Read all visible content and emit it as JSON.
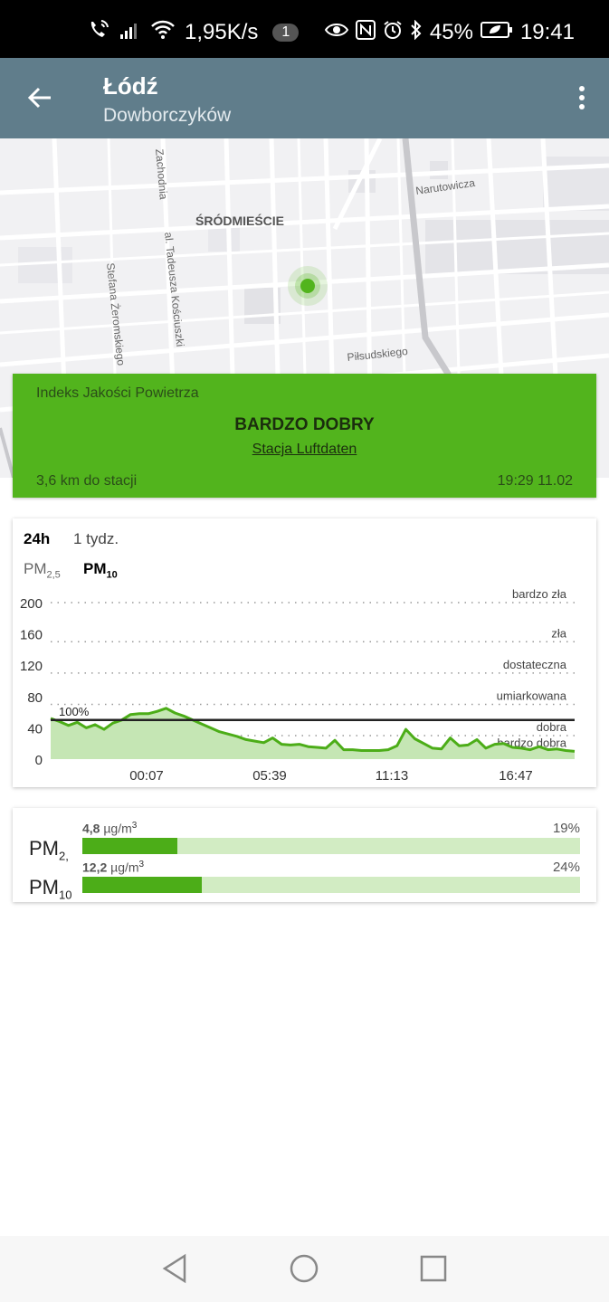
{
  "status_bar": {
    "net_speed": "1,95K/s",
    "notif_count": "1",
    "battery": "45%",
    "time": "19:41"
  },
  "app_bar": {
    "title": "Łódź",
    "subtitle": "Dowborczyków"
  },
  "map": {
    "labels": {
      "zachodnia": "Zachodnia",
      "narutowicza": "Narutowicza",
      "srodmiescie": "ŚRÓDMIEŚCIE",
      "kosciuszki": "al. Tadeusza Kościuszki",
      "zeromskiego": "Stefana Żeromskiego",
      "pilsudskiego": "Piłsudskiego"
    },
    "marker_color": "#52b41d"
  },
  "aqi_card": {
    "label": "Indeks Jakości Powietrza",
    "status": "BARDZO DOBRY",
    "station": "Stacja Luftdaten",
    "distance": "3,6 km do stacji",
    "updated": "19:29 11.02",
    "color": "#52b41d"
  },
  "chart_tabs": {
    "range_24h": "24h",
    "range_week": "1 tydz.",
    "pm25_main": "PM",
    "pm25_sub": "2,5",
    "pm10_main": "PM",
    "pm10_sub": "10"
  },
  "chart_data": {
    "type": "area",
    "y_ticks": [
      0,
      40,
      80,
      120,
      160,
      200
    ],
    "ylim": [
      0,
      200
    ],
    "x_tick_labels": [
      "00:07",
      "05:39",
      "11:13",
      "16:47"
    ],
    "reference_label": "100%",
    "reference_value": 50,
    "thresholds": [
      {
        "label": "bardzo zła",
        "value": 200
      },
      {
        "label": "zła",
        "value": 150
      },
      {
        "label": "dostateczna",
        "value": 110
      },
      {
        "label": "umiarkowana",
        "value": 70
      },
      {
        "label": "dobra",
        "value": 30
      },
      {
        "label": "bardzo dobra",
        "value": 10
      }
    ],
    "series": [
      {
        "values": [
          52,
          48,
          43,
          47,
          40,
          44,
          38,
          46,
          50,
          57,
          58,
          58,
          61,
          65,
          59,
          55,
          50,
          45,
          40,
          35,
          32,
          29,
          25,
          23,
          21,
          27,
          19,
          18,
          19,
          16,
          15,
          14,
          24,
          12,
          12,
          11,
          11,
          11,
          12,
          17,
          38,
          26,
          20,
          14,
          13,
          27,
          17,
          18,
          25,
          14,
          19,
          20,
          15,
          14,
          12,
          16,
          12,
          13,
          11,
          10
        ]
      }
    ],
    "line_color": "#4cad18",
    "fill_color": "#c5e6b4"
  },
  "pm_bars": [
    {
      "name": "PM",
      "sub": "2,",
      "value": "4,8",
      "unit": "µg/m",
      "unit_sup": "3",
      "percent": "19%",
      "fraction": 0.19
    },
    {
      "name": "PM",
      "sub": "10",
      "value": "12,2",
      "unit": "µg/m",
      "unit_sup": "3",
      "percent": "24%",
      "fraction": 0.24
    }
  ]
}
